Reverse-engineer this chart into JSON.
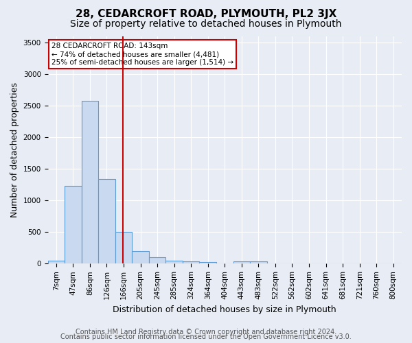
{
  "title": "28, CEDARCROFT ROAD, PLYMOUTH, PL2 3JX",
  "subtitle": "Size of property relative to detached houses in Plymouth",
  "xlabel": "Distribution of detached houses by size in Plymouth",
  "ylabel": "Number of detached properties",
  "categories": [
    "7sqm",
    "47sqm",
    "86sqm",
    "126sqm",
    "166sqm",
    "205sqm",
    "245sqm",
    "285sqm",
    "324sqm",
    "364sqm",
    "404sqm",
    "443sqm",
    "483sqm",
    "522sqm",
    "562sqm",
    "602sqm",
    "641sqm",
    "681sqm",
    "721sqm",
    "760sqm",
    "800sqm"
  ],
  "values": [
    50,
    1230,
    2580,
    1340,
    500,
    195,
    105,
    45,
    40,
    28,
    5,
    35,
    35,
    0,
    0,
    0,
    0,
    0,
    0,
    0,
    0
  ],
  "bar_color": "#c9d9f0",
  "bar_edge_color": "#5b9bd5",
  "ylim": [
    0,
    3600
  ],
  "yticks": [
    0,
    500,
    1000,
    1500,
    2000,
    2500,
    3000,
    3500
  ],
  "property_line_x": 3.97,
  "annotation_text": "28 CEDARCROFT ROAD: 143sqm\n← 74% of detached houses are smaller (4,481)\n25% of semi-detached houses are larger (1,514) →",
  "annotation_box_color": "#ffffff",
  "annotation_box_edge": "#cc0000",
  "footer_line1": "Contains HM Land Registry data © Crown copyright and database right 2024.",
  "footer_line2": "Contains public sector information licensed under the Open Government Licence v3.0.",
  "background_color": "#e8edf5",
  "plot_bg_color": "#e8edf5",
  "grid_color": "#ffffff",
  "title_fontsize": 11,
  "subtitle_fontsize": 10,
  "axis_label_fontsize": 9,
  "tick_fontsize": 7.5,
  "footer_fontsize": 7
}
